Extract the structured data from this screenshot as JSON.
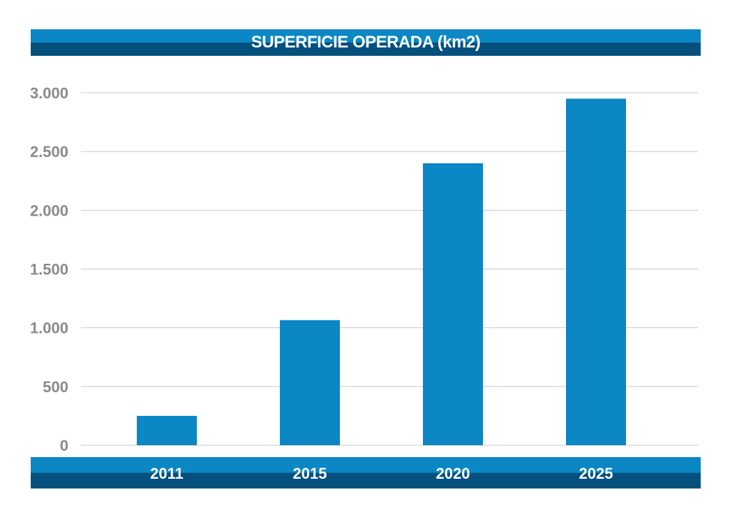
{
  "chart_data": {
    "type": "bar",
    "title": "SUPERFICIE OPERADA (km2)",
    "categories": [
      "2011",
      "2015",
      "2020",
      "2025"
    ],
    "values": [
      250,
      1065,
      2400,
      2950
    ],
    "ylim": [
      0,
      3000
    ],
    "yticks": [
      0,
      500,
      1000,
      1500,
      2000,
      2500,
      3000
    ],
    "ytick_labels": [
      "0",
      "500",
      "1.000",
      "1.500",
      "2.000",
      "2.500",
      "3.000"
    ],
    "xlabel": "",
    "ylabel": "",
    "grid": true,
    "bar_color": "#0a87c4",
    "grid_color": "#c8c8c8"
  }
}
